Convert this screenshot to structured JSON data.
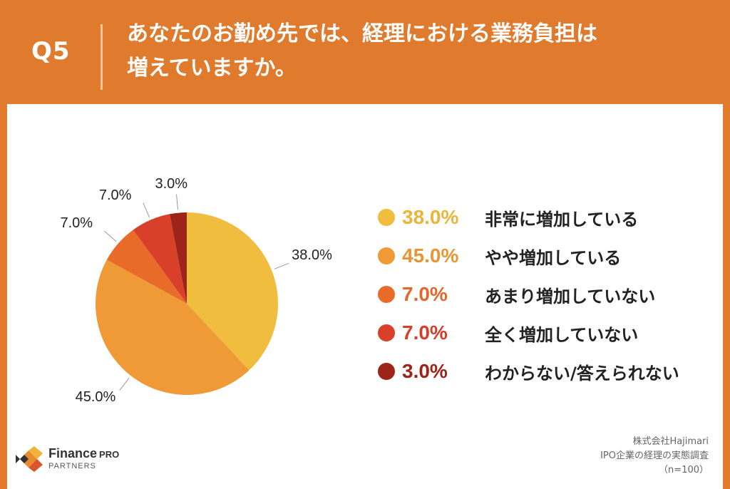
{
  "header": {
    "question_number": "Q5",
    "question_line1": "あなたのお勤め先では、経理における業務負担は",
    "question_line2": "増えていますか。"
  },
  "chart_data": {
    "type": "pie",
    "categories": [
      "非常に増加している",
      "やや増加している",
      "あまり増加していない",
      "全く増加していない",
      "わからない/答えられない"
    ],
    "values": [
      38.0,
      45.0,
      7.0,
      7.0,
      3.0
    ],
    "value_labels": [
      "38.0%",
      "45.0%",
      "7.0%",
      "7.0%",
      "3.0%"
    ],
    "colors": [
      "#f0bd3e",
      "#ef9a36",
      "#e86b2a",
      "#d9402a",
      "#9c2418"
    ],
    "legend_value_colors": [
      "#eab63a",
      "#ea9433",
      "#e3662a",
      "#d63e2a",
      "#9c2418"
    ],
    "start": "12 o'clock",
    "direction": "clockwise",
    "legend_position": "right"
  },
  "footer": {
    "logo_line1": "Finance",
    "logo_line1_suffix": "PRO",
    "logo_line2": "PARTNERS",
    "source_line1": "株式会社Hajimari",
    "source_line2": "IPO企業の経理の実態調査",
    "source_line3": "（n=100）"
  }
}
